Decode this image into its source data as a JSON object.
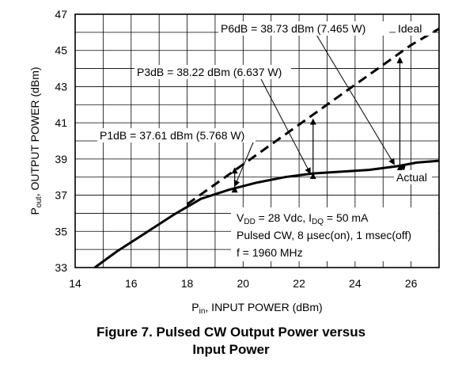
{
  "chart_data": {
    "type": "line",
    "xlabel_main": "P",
    "xlabel_sub": "in",
    "xlabel_rest": ", INPUT POWER (dBm)",
    "ylabel_main": "P",
    "ylabel_sub": "out",
    "ylabel_rest": ", OUTPUT POWER (dBm)",
    "xlim": [
      14,
      27
    ],
    "ylim": [
      33,
      47
    ],
    "x_ticks": [
      14,
      16,
      18,
      20,
      22,
      24,
      26
    ],
    "y_ticks": [
      33,
      35,
      37,
      39,
      41,
      43,
      45,
      47
    ],
    "grid": true,
    "series": [
      {
        "name": "Ideal",
        "style": "dashed",
        "points": [
          [
            18,
            36.5
          ],
          [
            20,
            38.7
          ],
          [
            22,
            40.9
          ],
          [
            24,
            43.1
          ],
          [
            26,
            45.3
          ],
          [
            27,
            46.2
          ]
        ]
      },
      {
        "name": "Actual",
        "style": "solid",
        "points": [
          [
            14.7,
            33.0
          ],
          [
            15.5,
            33.9
          ],
          [
            16.5,
            34.9
          ],
          [
            17.5,
            35.9
          ],
          [
            18.5,
            36.8
          ],
          [
            19.5,
            37.3
          ],
          [
            20.5,
            37.7
          ],
          [
            21.5,
            38.0
          ],
          [
            22.5,
            38.2
          ],
          [
            23.5,
            38.3
          ],
          [
            24.5,
            38.4
          ],
          [
            25.5,
            38.6
          ],
          [
            26.2,
            38.8
          ],
          [
            27,
            38.9
          ]
        ]
      }
    ],
    "annotations": {
      "p1db": "P1dB = 37.61 dBm (5.768 W)",
      "p3db": "P3dB = 38.22 dBm (6.637 W)",
      "p6db": "P6dB = 38.73 dBm (7.465 W)",
      "ideal": "Ideal",
      "actual": "Actual"
    },
    "conditions": {
      "line1_v": "V",
      "line1_vsub": "DD",
      "line1_mid": " = 28 Vdc, I",
      "line1_isub": "DQ",
      "line1_end": " = 50 mA",
      "line2": "Pulsed CW, 8 µsec(on), 1 msec(off)",
      "line3": "f = 1960 MHz"
    }
  },
  "caption": {
    "line1": "Figure 7. Pulsed CW Output Power versus",
    "line2": "Input Power"
  }
}
